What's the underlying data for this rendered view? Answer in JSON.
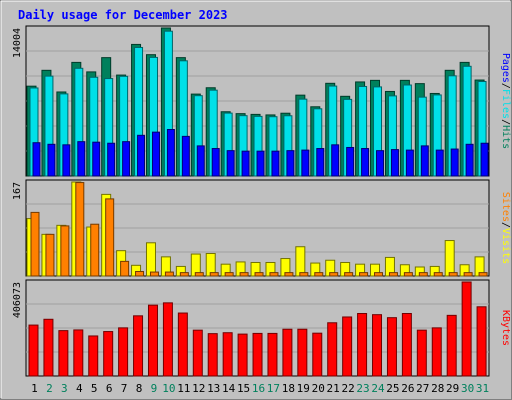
{
  "chart_data": {
    "type": "bar",
    "title": "Daily usage for December 2023",
    "categories": [
      "1",
      "2",
      "3",
      "4",
      "5",
      "6",
      "7",
      "8",
      "9",
      "10",
      "11",
      "12",
      "13",
      "14",
      "15",
      "16",
      "17",
      "18",
      "19",
      "20",
      "21",
      "22",
      "23",
      "24",
      "25",
      "26",
      "27",
      "28",
      "29",
      "30",
      "31"
    ],
    "weekend_days": [
      "2",
      "3",
      "9",
      "10",
      "16",
      "17",
      "23",
      "24",
      "30",
      "31"
    ],
    "panels": [
      {
        "id": "hits",
        "axis_max_label": "14004",
        "ylim": [
          0,
          14004
        ],
        "legend": [
          "Pages",
          "Files",
          "Hits"
        ],
        "series": [
          {
            "name": "Hits",
            "color": "#00805c",
            "values": [
              8500,
              10000,
              7950,
              10750,
              9850,
              11200,
              9550,
              12450,
              11480,
              14004,
              11200,
              7750,
              8350,
              6080,
              5900,
              5830,
              5780,
              5940,
              7650,
              6550,
              8770,
              7540,
              8900,
              9050,
              8000,
              9050,
              8740,
              7810,
              10000,
              10750,
              9080
            ]
          },
          {
            "name": "Files",
            "color": "#00e0e8",
            "values": [
              8330,
              9450,
              7770,
              10190,
              9340,
              9220,
              9430,
              12160,
              11220,
              13700,
              10900,
              7600,
              8120,
              5950,
              5710,
              5640,
              5610,
              5700,
              7270,
              6360,
              8510,
              7250,
              8470,
              8430,
              7580,
              8610,
              7460,
              7670,
              9480,
              10380,
              8940
            ]
          },
          {
            "name": "Pages",
            "color": "#0000ff",
            "values": [
              3150,
              3000,
              2950,
              3250,
              3200,
              3100,
              3250,
              3850,
              4150,
              4400,
              3750,
              2850,
              2600,
              2400,
              2350,
              2350,
              2350,
              2400,
              2450,
              2600,
              2950,
              2700,
              2600,
              2400,
              2500,
              2450,
              2850,
              2450,
              2550,
              3000,
              3100
            ]
          }
        ]
      },
      {
        "id": "visits",
        "axis_max_label": "167",
        "ylim": [
          0,
          167
        ],
        "legend": [
          "Sites",
          "Visits"
        ],
        "series": [
          {
            "name": "Visits",
            "color": "#ffff00",
            "values": [
              102,
              74,
              90,
              167,
              87,
              145,
              45,
              19,
              59,
              34,
              17,
              39,
              40,
              21,
              25,
              24,
              24,
              31,
              52,
              23,
              28,
              24,
              21,
              21,
              33,
              20,
              16,
              17,
              63,
              20,
              34
            ]
          },
          {
            "name": "Sites",
            "color": "#ff8000",
            "values": [
              113,
              74,
              89,
              166,
              92,
              137,
              26,
              8,
              7,
              7,
              6,
              6,
              6,
              6,
              6,
              6,
              6,
              6,
              6,
              6,
              6,
              6,
              6,
              6,
              6,
              6,
              6,
              6,
              6,
              6,
              6
            ]
          }
        ]
      },
      {
        "id": "kbytes",
        "axis_max_label": "406073",
        "ylim": [
          0,
          406073
        ],
        "legend": [
          "KBytes"
        ],
        "series": [
          {
            "name": "KBytes",
            "color": "#ff0000",
            "values": [
              220000,
              245000,
              196000,
              199000,
              173000,
              192000,
              208000,
              260000,
              306000,
              316000,
              272000,
              198000,
              183000,
              187000,
              181000,
              184000,
              184000,
              202000,
              202000,
              185000,
              230000,
              255000,
              270000,
              265000,
              252000,
              270000,
              198000,
              208000,
              262000,
              406073,
              299000
            ]
          }
        ]
      }
    ]
  }
}
